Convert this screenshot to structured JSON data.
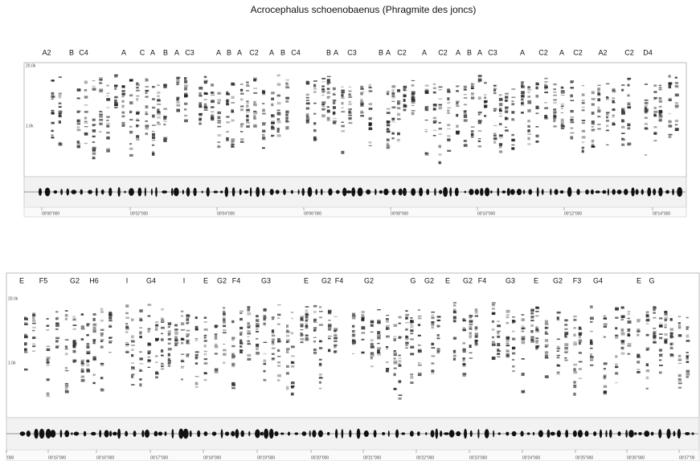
{
  "title": "Acrocephalus schoenobaenus (Phragmite des joncs)",
  "panels": [
    {
      "syllables": [
        "A2",
        "B",
        "C4",
        "A",
        "C",
        "A",
        "B",
        "A",
        "C3",
        "A",
        "B",
        "A",
        "C2",
        "A",
        "B",
        "C4",
        "B",
        "A",
        "C3",
        "B",
        "A",
        "C2",
        "A",
        "C2",
        "A",
        "B",
        "A",
        "C3",
        "A",
        "C2",
        "A",
        "C2",
        "A2",
        "C2",
        "D4"
      ],
      "frequency_labels": [
        "20.0k",
        "1.0k"
      ],
      "time_labels": [
        "00'00\"000",
        "00'02\"000",
        "00'04\"000",
        "00'06\"000",
        "00'08\"000",
        "00'10\"000",
        "00'12\"000",
        "00'14\"000"
      ]
    },
    {
      "syllables": [
        "E",
        "F5",
        "G2",
        "H6",
        "I",
        "G4",
        "I",
        "E",
        "G2",
        "F4",
        "G3",
        "E",
        "G2",
        "F4",
        "G2",
        "G",
        "G2",
        "E",
        "G2",
        "F4",
        "G3",
        "E",
        "G2",
        "F3",
        "G4",
        "E",
        "G"
      ],
      "frequency_labels": [
        "20.0k",
        "1.0k"
      ],
      "time_labels": [
        "'000",
        "00'15\"000",
        "00'16\"000",
        "00'17\"000",
        "00'18\"000",
        "00'19\"000",
        "00'20\"000",
        "00'21\"000",
        "00'22\"000",
        "00'23\"000",
        "00'24\"000",
        "00'25\"000",
        "00'26\"000",
        "00'27\"00"
      ]
    }
  ]
}
